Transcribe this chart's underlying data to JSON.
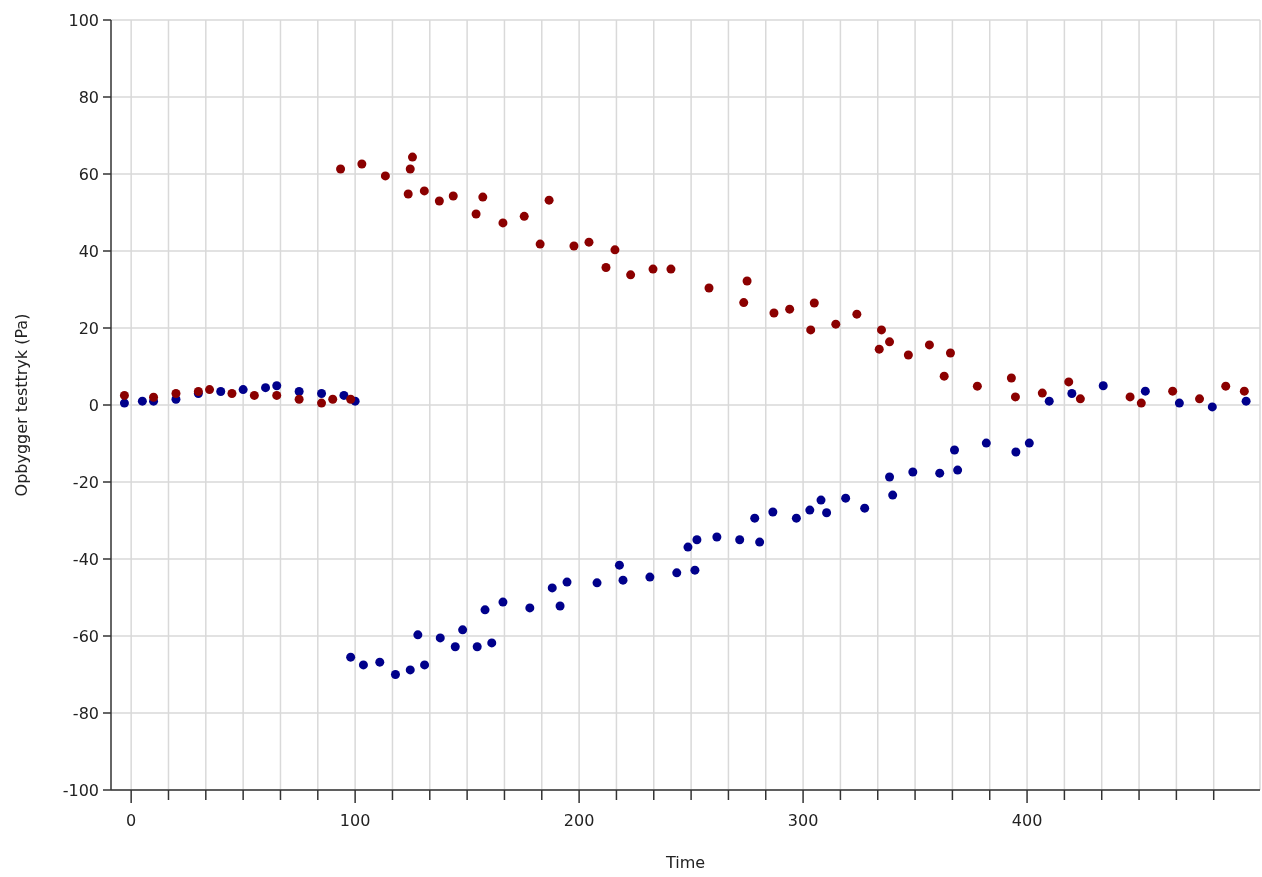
{
  "chart_data": {
    "type": "scatter",
    "xlabel": "Time",
    "ylabel": "Opbygger testtryk (Pa)",
    "xlim": [
      -9,
      504
    ],
    "ylim": [
      -100,
      100
    ],
    "xticks": [
      0,
      {
        "value": 16.667,
        "label": null
      },
      {
        "value": 33.333,
        "label": null
      },
      {
        "value": 50,
        "label": null
      },
      {
        "value": 66.667,
        "label": null
      },
      {
        "value": 83.333,
        "label": null
      },
      100,
      {
        "value": 116.667,
        "label": null
      },
      {
        "value": 133.333,
        "label": null
      },
      {
        "value": 150,
        "label": null
      },
      {
        "value": 166.667,
        "label": null
      },
      {
        "value": 183.333,
        "label": null
      },
      200,
      {
        "value": 216.667,
        "label": null
      },
      {
        "value": 233.333,
        "label": null
      },
      {
        "value": 250,
        "label": null
      },
      {
        "value": 266.667,
        "label": null
      },
      {
        "value": 283.333,
        "label": null
      },
      300,
      {
        "value": 316.667,
        "label": null
      },
      {
        "value": 333.333,
        "label": null
      },
      {
        "value": 350,
        "label": null
      },
      {
        "value": 366.667,
        "label": null
      },
      {
        "value": 383.333,
        "label": null
      },
      400,
      {
        "value": 416.667,
        "label": null
      },
      {
        "value": 433.333,
        "label": null
      },
      {
        "value": 450,
        "label": null
      },
      {
        "value": 466.667,
        "label": null
      },
      {
        "value": 483.333,
        "label": null
      }
    ],
    "yticks": [
      -100,
      -80,
      -60,
      -40,
      -20,
      0,
      20,
      40,
      60,
      80,
      100
    ],
    "grid": true,
    "marker": "circle",
    "series": [
      {
        "color": "#00008b",
        "x": [
          -3,
          5,
          10,
          20,
          30,
          40,
          50,
          60,
          65,
          75,
          85,
          95,
          100,
          98,
          103.7,
          111,
          118,
          124.6,
          131,
          128,
          138,
          144.7,
          148,
          154.5,
          161,
          158,
          166,
          178,
          191.5,
          188,
          194.6,
          208,
          219.6,
          218,
          231.6,
          243.6,
          251.7,
          248.6,
          252.6,
          261.5,
          271.7,
          280.6,
          278.4,
          286.5,
          297,
          303,
          310.5,
          308,
          319,
          327.5,
          340,
          338.6,
          349,
          361,
          369,
          367.6,
          381.8,
          395,
          401,
          409.9,
          420,
          434,
          452.8,
          468,
          482.7,
          497.8
        ],
        "values": [
          0.5,
          1,
          1,
          1.5,
          3,
          3.5,
          4,
          4.5,
          5,
          3.5,
          3,
          2.5,
          1,
          -65.5,
          -67.5,
          -66.8,
          -70,
          -68.8,
          -67.5,
          -59.7,
          -60.5,
          -62.8,
          -58.4,
          -62.8,
          -61.8,
          -53.2,
          -51.2,
          -52.7,
          -52.2,
          -47.5,
          -46,
          -46.2,
          -45.5,
          -41.6,
          -44.7,
          -43.6,
          -42.9,
          -36.9,
          -35,
          -34.3,
          -35,
          -35.6,
          -29.4,
          -27.8,
          -29.4,
          -27.3,
          -28,
          -24.7,
          -24.2,
          -26.8,
          -23.4,
          -18.7,
          -17.4,
          -17.7,
          -16.9,
          -11.7,
          -9.9,
          -12.2,
          -9.9,
          1,
          3,
          5,
          3.6,
          0.5,
          -0.5,
          1
        ]
      },
      {
        "color": "#8b0000",
        "x": [
          -3,
          10,
          20,
          30,
          35,
          45,
          55,
          65,
          75,
          85,
          90,
          98,
          93.5,
          103,
          113.5,
          124.6,
          125.6,
          123.7,
          130.9,
          137.6,
          143.8,
          157,
          154,
          166,
          175.5,
          186.6,
          182.6,
          197.7,
          204.4,
          216,
          212,
          223,
          233,
          241,
          258,
          275,
          273.5,
          287,
          294,
          305,
          303.4,
          314.6,
          324,
          335,
          334,
          338.6,
          347,
          356.4,
          365.8,
          363,
          377.8,
          393,
          394.8,
          406.8,
          418.6,
          423.8,
          446,
          451,
          465,
          477,
          488.7,
          497
        ],
        "values": [
          2.5,
          2,
          3,
          3.5,
          4,
          3,
          2.5,
          2.5,
          1.5,
          0.5,
          1.5,
          1.5,
          61.3,
          62.6,
          59.5,
          61.3,
          64.4,
          54.8,
          55.6,
          53,
          54.3,
          54,
          49.6,
          47.3,
          49,
          53.2,
          41.8,
          41.3,
          42.3,
          40.3,
          35.7,
          33.8,
          35.3,
          35.3,
          30.4,
          32.2,
          26.6,
          23.9,
          24.9,
          26.5,
          19.5,
          21,
          23.6,
          19.5,
          14.5,
          16.4,
          13,
          15.6,
          13.5,
          7.5,
          4.9,
          7,
          2.1,
          3.1,
          6,
          1.6,
          2.1,
          0.5,
          3.6,
          1.6,
          4.9,
          3.6
        ]
      }
    ]
  }
}
